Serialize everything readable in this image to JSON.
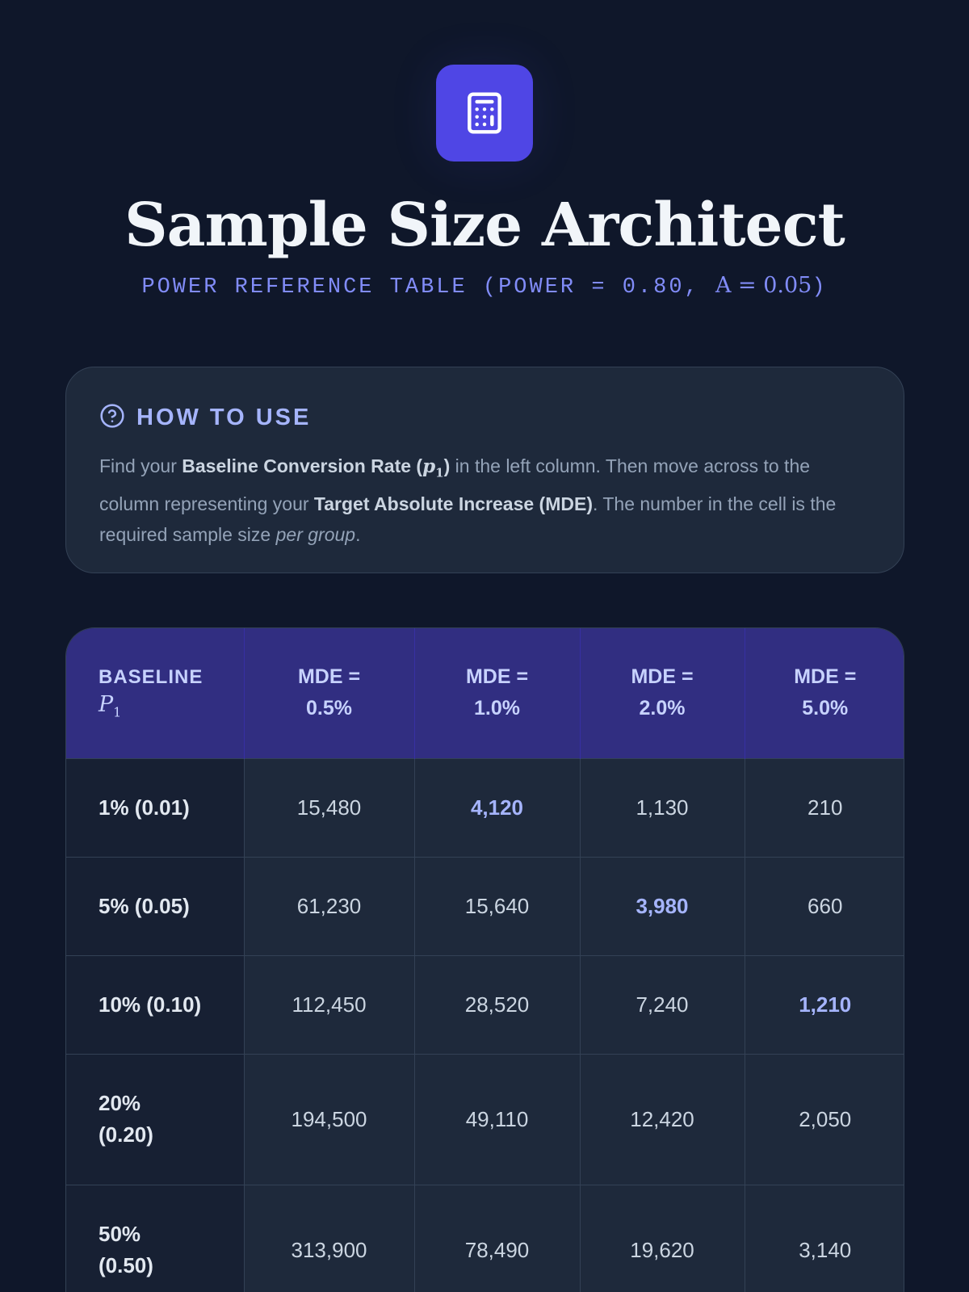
{
  "header": {
    "title": "Sample Size Architect",
    "subtitle_prefix": "POWER REFERENCE TABLE (POWER = 0.80, ",
    "subtitle_alpha": "Α = 0.05",
    "subtitle_suffix": ")",
    "icon": "calculator-icon",
    "accent_color": "#4f46e5"
  },
  "how_to": {
    "icon": "help-circle-icon",
    "title": "HOW TO USE",
    "text_1": "Find your ",
    "bold_1": "Baseline Conversion Rate (",
    "bold_1_math": "p",
    "bold_1_sub": "1",
    "bold_1_close": ")",
    "text_2": " in the left column. Then move across to the column representing your ",
    "bold_2": "Target Absolute Increase (MDE)",
    "text_3": ". The number in the cell is the required sample size ",
    "italic_1": "per group",
    "text_4": "."
  },
  "table": {
    "headers": {
      "baseline_label": "BASELINE",
      "baseline_math": "P",
      "baseline_sub": "1",
      "mde": [
        {
          "line1": "MDE =",
          "line2": "0.5%"
        },
        {
          "line1": "MDE =",
          "line2": "1.0%"
        },
        {
          "line1": "MDE =",
          "line2": "2.0%"
        },
        {
          "line1": "MDE =",
          "line2": "5.0%"
        }
      ]
    },
    "rows": [
      {
        "baseline": "1% (0.01)",
        "values": [
          "15,480",
          "4,120",
          "1,130",
          "210"
        ],
        "highlight": 1
      },
      {
        "baseline": "5% (0.05)",
        "values": [
          "61,230",
          "15,640",
          "3,980",
          "660"
        ],
        "highlight": 2
      },
      {
        "baseline": "10% (0.10)",
        "values": [
          "112,450",
          "28,520",
          "7,240",
          "1,210"
        ],
        "highlight": 3
      },
      {
        "baseline": "20% (0.20)",
        "values": [
          "194,500",
          "49,110",
          "12,420",
          "2,050"
        ],
        "highlight": -1
      },
      {
        "baseline": "50% (0.50)",
        "values": [
          "313,900",
          "78,490",
          "19,620",
          "3,140"
        ],
        "highlight": -1
      }
    ]
  }
}
